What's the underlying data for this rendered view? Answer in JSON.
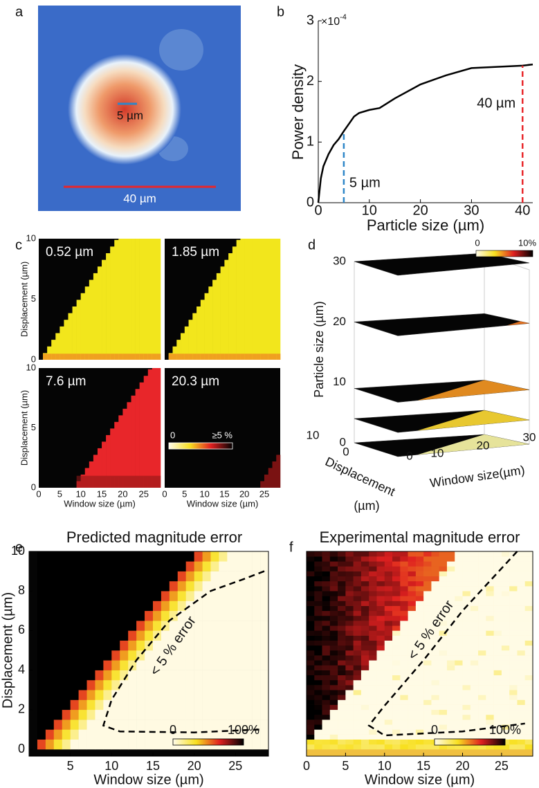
{
  "chart_data": [
    {
      "type": "image",
      "panel": "a",
      "annotations": [
        "5 µm",
        "40 µm"
      ]
    },
    {
      "type": "line",
      "panel": "b",
      "ylabel": "Power density",
      "xlabel": "Particle size (µm)",
      "y_multiplier": "×10",
      "y_exponent": "-4",
      "x": [
        0,
        0.5,
        1,
        2,
        3,
        4,
        5,
        6,
        7,
        8,
        10,
        12,
        15,
        20,
        25,
        30,
        35,
        40,
        42
      ],
      "values": [
        0,
        0.4,
        0.6,
        0.8,
        0.95,
        1.05,
        1.18,
        1.3,
        1.42,
        1.48,
        1.53,
        1.56,
        1.72,
        1.95,
        2.1,
        2.22,
        2.24,
        2.26,
        2.28
      ],
      "color": "#000000",
      "xlim": [
        0,
        42
      ],
      "ylim": [
        0,
        3
      ],
      "xticks": [
        0,
        10,
        20,
        30,
        40
      ],
      "yticks": [
        0,
        1,
        2,
        3
      ],
      "markers": [
        {
          "x": 5,
          "label": "5 µm",
          "color": "#2e86c8"
        },
        {
          "x": 40,
          "label": "40 µm",
          "color": "#e8262a"
        }
      ]
    },
    {
      "type": "heatmap",
      "panel": "c",
      "ylabel": "Displacement (µm)",
      "xlabel": "Window size (µm)",
      "xlim": [
        0,
        29
      ],
      "ylim": [
        0,
        10
      ],
      "xticks": [
        0,
        5,
        10,
        15,
        20,
        25
      ],
      "yticks": [
        0,
        5,
        10
      ],
      "colorbar": [
        "0",
        "≥5 %"
      ],
      "subplots": [
        {
          "title": "0.52 µm",
          "color": "#f2e61c"
        },
        {
          "title": "1.85 µm",
          "color": "#f2e61c"
        },
        {
          "title": "7.6 µm",
          "color": "#e8262a"
        },
        {
          "title": "20.3 µm",
          "color": "#7a1212"
        }
      ]
    },
    {
      "type": "surface3d",
      "panel": "d",
      "zlabel": "Particle size (µm)",
      "xlabel": "Window size(µm)",
      "ylabel": [
        "Displacement",
        "(µm)"
      ],
      "xticks": [
        0,
        10,
        20,
        30
      ],
      "yticks": [
        0,
        10
      ],
      "zlim": [
        0,
        30
      ],
      "zticks": [
        0,
        10,
        20,
        30
      ],
      "colorbar": [
        "0",
        "10%"
      ],
      "layers": [
        {
          "z": 0,
          "color": "#e6e39a"
        },
        {
          "z": 4,
          "color": "#e8c830"
        },
        {
          "z": 9,
          "color": "#e08a20"
        },
        {
          "z": 20,
          "color": "#e07020"
        },
        {
          "z": 30,
          "color": "#000000"
        }
      ]
    },
    {
      "type": "heatmap",
      "panel": "e",
      "title": "Predicted magnitude error",
      "xlabel": "Window size (µm)",
      "ylabel": "Displacement (µm)",
      "xlim": [
        0,
        29
      ],
      "ylim": [
        0,
        10
      ],
      "xticks": [
        5,
        10,
        15,
        20,
        25
      ],
      "yticks": [
        0,
        2,
        4,
        6,
        8,
        10
      ],
      "annotation": "< 5 % error",
      "colorbar": [
        "0",
        "100%"
      ]
    },
    {
      "type": "heatmap",
      "panel": "f",
      "title": "Experimental magnitude error",
      "xlabel": "Window size (µm)",
      "xlim": [
        0,
        29
      ],
      "ylim": [
        0,
        10
      ],
      "xticks": [
        0,
        5,
        10,
        15,
        20,
        25
      ],
      "annotation": "< 5 % error",
      "colorbar": [
        "0",
        "100%"
      ]
    }
  ]
}
